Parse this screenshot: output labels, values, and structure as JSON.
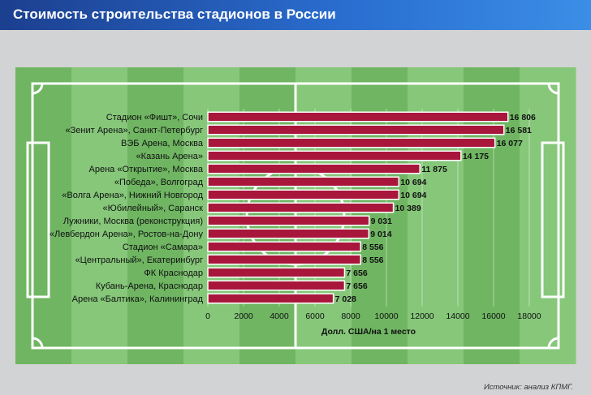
{
  "header": {
    "title": "Стоимость строительства стадионов в России"
  },
  "source": "Источник: анализ КПМГ.",
  "colors": {
    "bar": "#a8163c",
    "bar_border": "#ffffff",
    "field_dark": "#6fb562",
    "field_light": "#86c77a",
    "lines": "#ffffff",
    "text": "#111111"
  },
  "chart_data": {
    "type": "bar",
    "orientation": "horizontal",
    "title": "Стоимость строительства стадионов в России",
    "xlabel": "Долл. США/на 1 место",
    "ylabel": "",
    "xlim": [
      0,
      18000
    ],
    "xticks": [
      0,
      2000,
      4000,
      6000,
      8000,
      10000,
      12000,
      14000,
      16000,
      18000
    ],
    "categories": [
      "Стадион «Фишт», Сочи",
      "«Зенит Арена», Санкт-Петербург",
      "ВЭБ Арена, Москва",
      "«Казань Арена»",
      "Арена «Открытие», Москва",
      "«Победа», Волгоград",
      "«Волга Арена», Нижний Новгород",
      "«Юбилейный», Саранск",
      "Лужники, Москва (реконструкция)",
      "«Левбердон Арена», Ростов-на-Дону",
      "Стадион «Самара»",
      "«Центральный», Екатеринбург",
      "ФК Краснодар",
      "Кубань-Арена, Краснодар",
      "Арена «Балтика», Калининград"
    ],
    "values": [
      16806,
      16581,
      16077,
      14175,
      11875,
      10694,
      10694,
      10389,
      9031,
      9014,
      8556,
      8556,
      7656,
      7656,
      7028
    ],
    "value_labels": [
      "16 806",
      "16 581",
      "16 077",
      "14 175",
      "11 875",
      "10 694",
      "10 694",
      "10 389",
      "9 031",
      "9 014",
      "8 556",
      "8 556",
      "7 656",
      "7 656",
      "7 028"
    ]
  }
}
